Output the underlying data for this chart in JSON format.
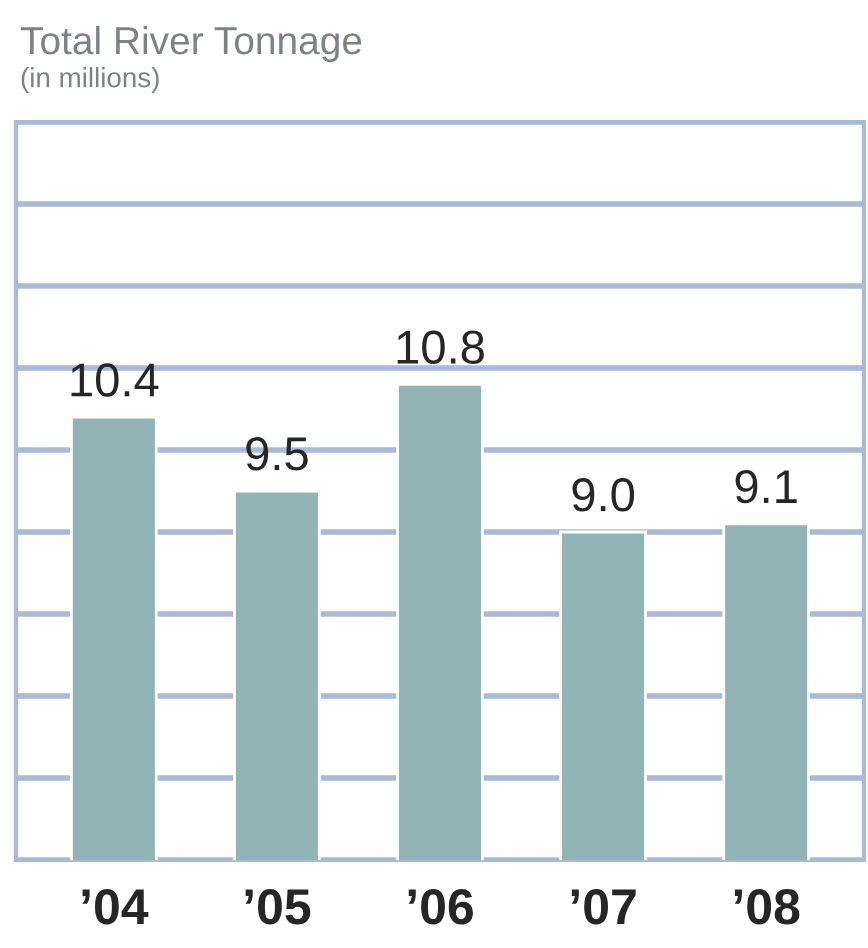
{
  "chart_data": {
    "type": "bar",
    "title": "Total River Tonnage",
    "subtitle": "(in millions)",
    "categories": [
      "’04",
      "’05",
      "’06",
      "’07",
      "’08"
    ],
    "values": [
      10.4,
      9.5,
      10.8,
      9.0,
      9.1
    ],
    "color": "#92b4b6",
    "data_labels": true,
    "value_labels": [
      "10.4",
      "9.5",
      "10.8",
      "9.0",
      "9.1"
    ],
    "ylim": [
      5,
      14
    ],
    "yticks": [
      {
        "value": 5,
        "label": null
      },
      {
        "value": 6,
        "label": null
      },
      {
        "value": 7,
        "label": null
      },
      {
        "value": 8,
        "label": null
      },
      {
        "value": 9,
        "label": null
      },
      {
        "value": 10,
        "label": null
      },
      {
        "value": 11,
        "label": null
      },
      {
        "value": 12,
        "label": null
      },
      {
        "value": 13,
        "label": null
      },
      {
        "value": 14,
        "label": null
      }
    ],
    "grid": "y",
    "tick_labels": "x"
  }
}
